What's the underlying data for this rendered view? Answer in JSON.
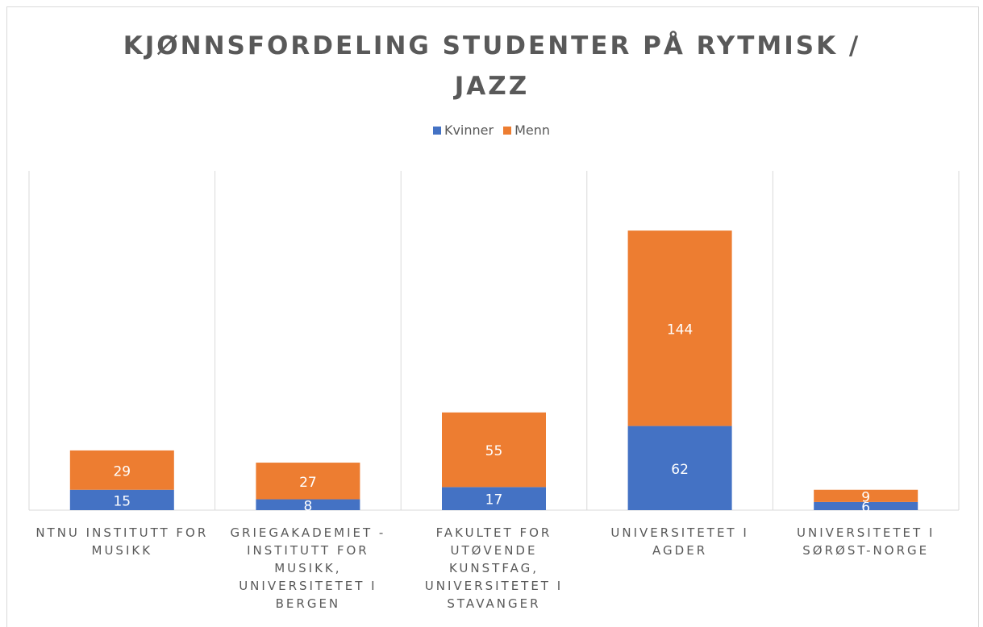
{
  "chart_data": {
    "type": "stacked_bar",
    "title": "KJØNNSFORDELING STUDENTER PÅ RYTMISK / JAZZ",
    "categories": [
      "NTNU INSTITUTT FOR MUSIKK",
      "GRIEGAKADEMIET - INSTITUTT FOR MUSIKK, UNIVERSITETET I BERGEN",
      "FAKULTET FOR UTØVENDE KUNSTFAG, UNIVERSITETET I STAVANGER",
      "UNIVERSITETET I AGDER",
      "UNIVERSITETET I SØRØST-NORGE"
    ],
    "series": [
      {
        "name": "Kvinner",
        "color": "#4472c4",
        "values": [
          15,
          8,
          17,
          62,
          6
        ]
      },
      {
        "name": "Menn",
        "color": "#ed7d31",
        "values": [
          29,
          27,
          55,
          144,
          9
        ]
      }
    ],
    "ylim": [
      0,
      250
    ],
    "legend": "top"
  }
}
